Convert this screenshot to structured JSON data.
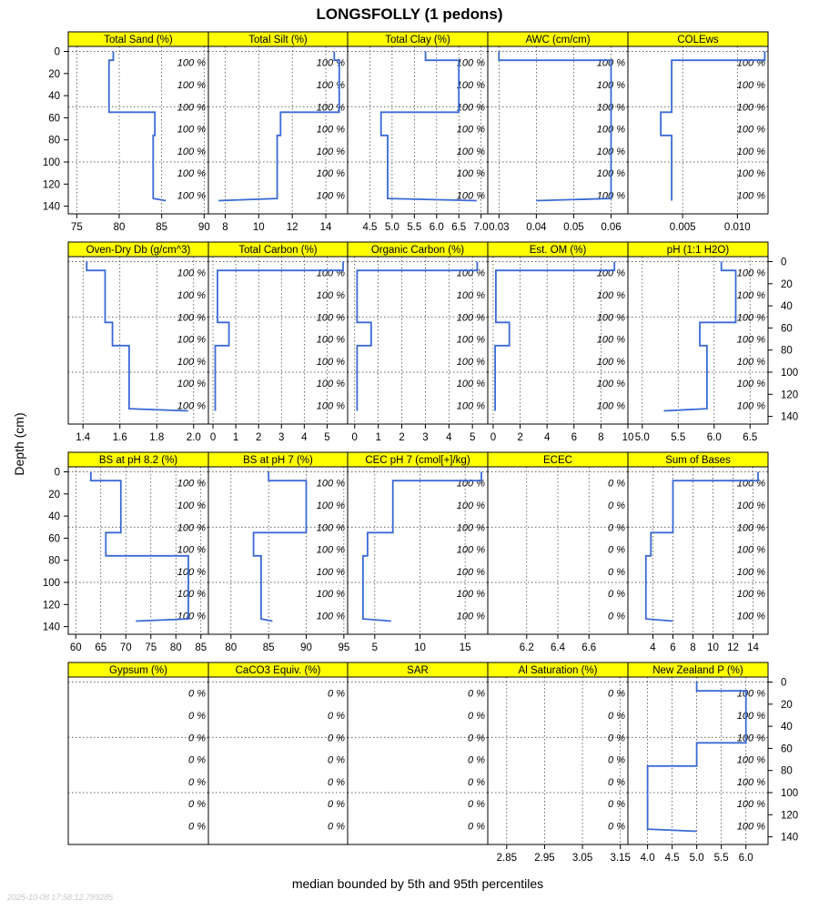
{
  "title": "LONGSFOLLY (1 pedons)",
  "ylabel": "Depth (cm)",
  "xlabel": "median bounded by 5th and 95th percentiles",
  "timestamp": "2025-10-08 17:58:12.789285",
  "colors": {
    "strip": "#ffff00",
    "line": "#3a6ad6",
    "grid": "#333333"
  },
  "chart_data": {
    "type": "line",
    "grid": true,
    "depth_axis": {
      "reversed": true,
      "ylim": [
        0,
        145
      ],
      "ticks": [
        0,
        20,
        40,
        60,
        80,
        100,
        120,
        140
      ]
    },
    "panels": [
      {
        "name": "Total Sand (%)",
        "xlim": [
          74,
          90.5
        ],
        "xticks": [
          "75",
          "80",
          "85",
          "90"
        ],
        "xtick_vals": [
          75,
          80,
          85,
          90
        ],
        "depth": [
          0,
          8,
          8,
          55,
          55,
          76,
          76,
          133,
          133,
          135
        ],
        "values": [
          79.3,
          79.3,
          78.8,
          78.8,
          84.2,
          84.2,
          84.0,
          84.0,
          84.0,
          85.5
        ],
        "pct_labels": [
          "100 %",
          "100 %",
          "100 %",
          "100 %",
          "100 %",
          "100 %",
          "100 %"
        ]
      },
      {
        "name": "Total Silt (%)",
        "xlim": [
          7,
          15.3
        ],
        "xticks": [
          "8",
          "10",
          "12",
          "14"
        ],
        "xtick_vals": [
          8,
          10,
          12,
          14
        ],
        "depth": [
          0,
          8,
          8,
          55,
          55,
          76,
          76,
          133,
          133,
          135
        ],
        "values": [
          14.5,
          14.5,
          14.8,
          14.8,
          11.3,
          11.3,
          11.1,
          11.1,
          11.1,
          7.6
        ],
        "pct_labels": [
          "100 %",
          "100 %",
          "100 %",
          "100 %",
          "100 %",
          "100 %",
          "100 %"
        ]
      },
      {
        "name": "Total Clay (%)",
        "xlim": [
          4.0,
          7.15
        ],
        "xticks": [
          "4.5",
          "5.0",
          "5.5",
          "6.0",
          "6.5",
          "7.0"
        ],
        "xtick_vals": [
          4.5,
          5.0,
          5.5,
          6.0,
          6.5,
          7.0
        ],
        "depth": [
          0,
          8,
          8,
          55,
          55,
          76,
          76,
          133,
          133,
          135
        ],
        "values": [
          5.75,
          5.75,
          6.5,
          6.5,
          4.75,
          4.75,
          4.9,
          4.9,
          4.9,
          6.9
        ],
        "pct_labels": [
          "100 %",
          "100 %",
          "100 %",
          "100 %",
          "100 %",
          "100 %",
          "100 %"
        ]
      },
      {
        "name": "AWC (cm/cm)",
        "xlim": [
          0.027,
          0.0645
        ],
        "xticks": [
          "0.03",
          "0.04",
          "0.05",
          "0.06"
        ],
        "xtick_vals": [
          0.03,
          0.04,
          0.05,
          0.06
        ],
        "depth": [
          0,
          8,
          8,
          133,
          133,
          135
        ],
        "values": [
          0.03,
          0.03,
          0.06,
          0.06,
          0.06,
          0.04
        ],
        "pct_labels": [
          "100 %",
          "100 %",
          "100 %",
          "100 %",
          "100 %",
          "100 %",
          "100 %"
        ]
      },
      {
        "name": "COLEws",
        "xlim": [
          0.0,
          0.0128
        ],
        "xticks": [
          "0.005",
          "0.010"
        ],
        "xtick_vals": [
          0.005,
          0.01
        ],
        "depth": [
          0,
          8,
          8,
          55,
          55,
          64,
          64,
          76,
          76,
          133,
          133,
          135
        ],
        "values": [
          0.0125,
          0.0125,
          0.004,
          0.004,
          0.003,
          0.003,
          0.003,
          0.003,
          0.004,
          0.004,
          0.004,
          0.004
        ],
        "pct_labels": [
          "100 %",
          "100 %",
          "100 %",
          "100 %",
          "100 %",
          "100 %",
          "100 %"
        ]
      },
      {
        "name": "Oven-Dry Db (g/cm^3)",
        "xlim": [
          1.32,
          2.08
        ],
        "xticks": [
          "1.4",
          "1.6",
          "1.8",
          "2.0"
        ],
        "xtick_vals": [
          1.4,
          1.6,
          1.8,
          2.0
        ],
        "depth": [
          0,
          8,
          8,
          55,
          55,
          76,
          76,
          133,
          133,
          135
        ],
        "values": [
          1.42,
          1.42,
          1.52,
          1.52,
          1.56,
          1.56,
          1.65,
          1.65,
          1.65,
          1.97
        ],
        "pct_labels": [
          "100 %",
          "100 %",
          "100 %",
          "100 %",
          "100 %",
          "100 %",
          "100 %"
        ]
      },
      {
        "name": "Total Carbon (%)",
        "xlim": [
          -0.2,
          5.9
        ],
        "xticks": [
          "0",
          "1",
          "2",
          "3",
          "4",
          "5"
        ],
        "xtick_vals": [
          0,
          1,
          2,
          3,
          4,
          5
        ],
        "depth": [
          0,
          8,
          8,
          55,
          55,
          76,
          76,
          133,
          133,
          135
        ],
        "values": [
          5.7,
          5.7,
          0.2,
          0.2,
          0.7,
          0.7,
          0.1,
          0.1,
          0.1,
          0.1
        ],
        "pct_labels": [
          "100 %",
          "100 %",
          "100 %",
          "100 %",
          "100 %",
          "100 %",
          "100 %"
        ]
      },
      {
        "name": "Organic Carbon (%)",
        "xlim": [
          -0.3,
          5.65
        ],
        "xticks": [
          "0",
          "1",
          "2",
          "3",
          "4",
          "5"
        ],
        "xtick_vals": [
          0,
          1,
          2,
          3,
          4,
          5
        ],
        "depth": [
          0,
          8,
          8,
          55,
          55,
          76,
          76,
          133,
          133,
          135
        ],
        "values": [
          5.2,
          5.2,
          0.1,
          0.1,
          0.7,
          0.7,
          0.1,
          0.1,
          0.1,
          0.1
        ],
        "pct_labels": [
          "100 %",
          "100 %",
          "100 %",
          "100 %",
          "100 %",
          "100 %",
          "100 %"
        ]
      },
      {
        "name": "Est. OM (%)",
        "xlim": [
          -0.4,
          10.0
        ],
        "xticks": [
          "0",
          "2",
          "4",
          "6",
          "8",
          "10"
        ],
        "xtick_vals": [
          0,
          2,
          4,
          6,
          8,
          10
        ],
        "depth": [
          0,
          8,
          8,
          55,
          55,
          76,
          76,
          133,
          133,
          135
        ],
        "values": [
          9.0,
          9.0,
          0.2,
          0.2,
          1.2,
          1.2,
          0.15,
          0.15,
          0.15,
          0.15
        ],
        "pct_labels": [
          "100 %",
          "100 %",
          "100 %",
          "100 %",
          "100 %",
          "100 %",
          "100 %"
        ]
      },
      {
        "name": "pH (1:1 H2O)",
        "xlim": [
          4.8,
          6.75
        ],
        "xticks": [
          "5.0",
          "5.5",
          "6.0",
          "6.5"
        ],
        "xtick_vals": [
          5.0,
          5.5,
          6.0,
          6.5
        ],
        "depth": [
          0,
          8,
          8,
          55,
          55,
          76,
          76,
          133,
          133,
          135
        ],
        "values": [
          6.1,
          6.1,
          6.3,
          6.3,
          5.8,
          5.8,
          5.9,
          5.9,
          5.9,
          5.3
        ],
        "pct_labels": [
          "100 %",
          "100 %",
          "100 %",
          "100 %",
          "100 %",
          "100 %",
          "100 %"
        ]
      },
      {
        "name": "BS at pH 8.2 (%)",
        "xlim": [
          58.5,
          86.5
        ],
        "xticks": [
          "60",
          "65",
          "70",
          "75",
          "80",
          "85"
        ],
        "xtick_vals": [
          60,
          65,
          70,
          75,
          80,
          85
        ],
        "depth": [
          0,
          8,
          8,
          55,
          55,
          76,
          76,
          133,
          133,
          135
        ],
        "values": [
          63,
          63,
          69,
          69,
          66,
          66,
          82.5,
          82.5,
          82.5,
          72
        ],
        "pct_labels": [
          "100 %",
          "100 %",
          "100 %",
          "100 %",
          "100 %",
          "100 %",
          "100 %"
        ]
      },
      {
        "name": "BS at pH 7 (%)",
        "xlim": [
          77,
          95.5
        ],
        "xticks": [
          "80",
          "85",
          "90",
          "95"
        ],
        "xtick_vals": [
          80,
          85,
          90,
          95
        ],
        "depth": [
          0,
          8,
          8,
          55,
          55,
          76,
          76,
          133,
          133,
          135
        ],
        "values": [
          85,
          85,
          90,
          90,
          83,
          83,
          84,
          84,
          84,
          85.5
        ],
        "pct_labels": [
          "100 %",
          "100 %",
          "100 %",
          "100 %",
          "100 %",
          "100 %",
          "100 %"
        ]
      },
      {
        "name": "CEC pH 7 (cmol[+]/kg)",
        "xlim": [
          2.0,
          17.5
        ],
        "xticks": [
          "5",
          "10",
          "15"
        ],
        "xtick_vals": [
          5,
          10,
          15
        ],
        "depth": [
          0,
          8,
          8,
          55,
          55,
          76,
          76,
          133,
          133,
          135
        ],
        "values": [
          16.8,
          16.8,
          7.0,
          7.0,
          4.2,
          4.2,
          3.7,
          3.7,
          3.7,
          6.8
        ],
        "pct_labels": [
          "100 %",
          "100 %",
          "100 %",
          "100 %",
          "100 %",
          "100 %",
          "100 %"
        ]
      },
      {
        "name": "ECEC",
        "xlim": [
          5.95,
          6.85
        ],
        "xticks": [
          "6.2",
          "6.4",
          "6.6"
        ],
        "xtick_vals": [
          6.2,
          6.4,
          6.6
        ],
        "depth": [],
        "values": [],
        "pct_labels": [
          "0 %",
          "0 %",
          "0 %",
          "0 %",
          "0 %",
          "0 %",
          "0 %"
        ]
      },
      {
        "name": "Sum of Bases",
        "xlim": [
          1.5,
          15.5
        ],
        "xticks": [
          "4",
          "6",
          "8",
          "10",
          "12",
          "14"
        ],
        "xtick_vals": [
          4,
          6,
          8,
          10,
          12,
          14
        ],
        "depth": [
          0,
          8,
          8,
          55,
          55,
          76,
          76,
          133,
          133,
          135
        ],
        "values": [
          14.5,
          14.5,
          6.0,
          6.0,
          3.8,
          3.8,
          3.3,
          3.3,
          3.3,
          6.0
        ],
        "pct_labels": [
          "100 %",
          "100 %",
          "100 %",
          "100 %",
          "100 %",
          "100 %",
          "100 %"
        ]
      },
      {
        "name": "Gypsum (%)",
        "xlim": [
          0,
          1
        ],
        "xticks": [],
        "xtick_vals": [],
        "depth": [],
        "values": [],
        "pct_labels": [
          "0 %",
          "0 %",
          "0 %",
          "0 %",
          "0 %",
          "0 %",
          "0 %"
        ]
      },
      {
        "name": "CaCO3 Equiv. (%)",
        "xlim": [
          0,
          1
        ],
        "xticks": [],
        "xtick_vals": [],
        "depth": [],
        "values": [],
        "pct_labels": [
          "0 %",
          "0 %",
          "0 %",
          "0 %",
          "0 %",
          "0 %",
          "0 %"
        ]
      },
      {
        "name": "SAR",
        "xlim": [
          0,
          1
        ],
        "xticks": [],
        "xtick_vals": [],
        "depth": [],
        "values": [],
        "pct_labels": [
          "0 %",
          "0 %",
          "0 %",
          "0 %",
          "0 %",
          "0 %",
          "0 %"
        ]
      },
      {
        "name": "Al Saturation (%)",
        "xlim": [
          2.8,
          3.17
        ],
        "xticks": [
          "2.85",
          "2.95",
          "3.05",
          "3.15"
        ],
        "xtick_vals": [
          2.85,
          2.95,
          3.05,
          3.15
        ],
        "depth": [],
        "values": [],
        "pct_labels": [
          "0 %",
          "0 %",
          "0 %",
          "0 %",
          "0 %",
          "0 %",
          "0 %"
        ]
      },
      {
        "name": "New Zealand P (%)",
        "xlim": [
          3.6,
          6.45
        ],
        "xticks": [
          "4.0",
          "4.5",
          "5.0",
          "5.5",
          "6.0"
        ],
        "xtick_vals": [
          4.0,
          4.5,
          5.0,
          5.5,
          6.0
        ],
        "depth": [
          0,
          8,
          8,
          55,
          55,
          76,
          76,
          133,
          133,
          135
        ],
        "values": [
          5.0,
          5.0,
          6.0,
          6.0,
          5.0,
          5.0,
          4.0,
          4.0,
          4.0,
          5.0
        ],
        "pct_labels": [
          "100 %",
          "100 %",
          "100 %",
          "100 %",
          "100 %",
          "100 %",
          "100 %"
        ]
      }
    ]
  }
}
